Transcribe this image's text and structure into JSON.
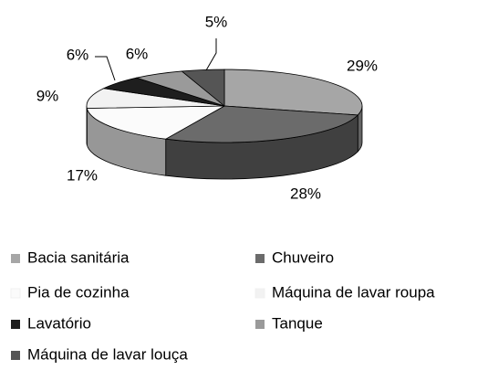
{
  "chart_data": {
    "type": "pie",
    "categories": [
      "Bacia sanitária",
      "Chuveiro",
      "Pia de cozinha",
      "Máquina de lavar roupa",
      "Lavatório",
      "Tanque",
      "Máquina de lavar louça"
    ],
    "values": [
      29,
      28,
      17,
      9,
      6,
      6,
      5
    ],
    "value_labels": [
      "29%",
      "28%",
      "17%",
      "9%",
      "6%",
      "6%",
      "5%"
    ],
    "colors": [
      "#a6a6a6",
      "#6b6b6b",
      "#fbfbfb",
      "#f2f2f2",
      "#1e1e1e",
      "#9a9a9a",
      "#555555"
    ],
    "legend": "bottom"
  }
}
